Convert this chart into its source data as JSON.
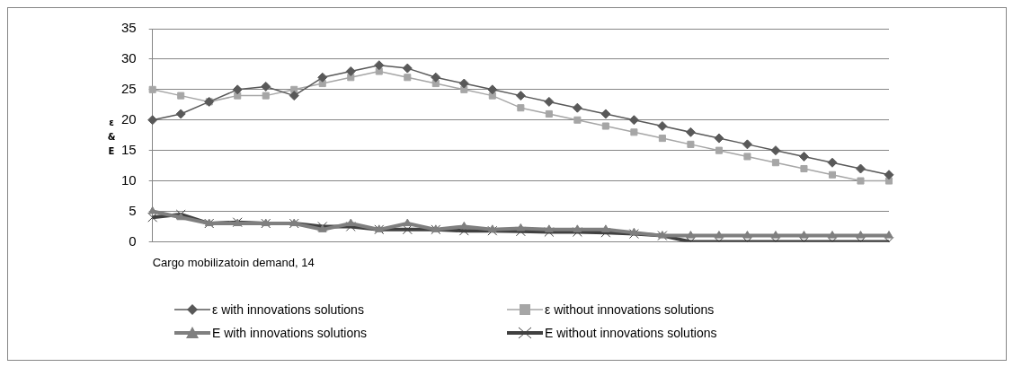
{
  "chart_data": {
    "type": "line",
    "xlabel": "Cargo mobilizatoin demand, 14",
    "ylabel": "ε & E",
    "categories": [
      null,
      null,
      null,
      null,
      null,
      null,
      null,
      null,
      null,
      null,
      null,
      null,
      null,
      null,
      null,
      null,
      null,
      null,
      null,
      null,
      null,
      null,
      null,
      null,
      null,
      null,
      null
    ],
    "series": [
      {
        "name": "ε with innovations solutions",
        "color": "#595959",
        "marker": "diamond",
        "values": [
          20,
          21,
          23,
          25,
          25.5,
          24,
          27,
          28,
          29,
          28.5,
          27,
          26,
          25,
          24,
          23,
          22,
          21,
          20,
          19,
          18,
          17,
          16,
          15,
          14,
          13,
          12,
          11
        ]
      },
      {
        "name": "ε without innovations solutions",
        "color": "#a6a6a6",
        "marker": "square",
        "values": [
          25,
          24,
          23,
          24,
          24,
          25,
          26,
          27,
          28,
          27,
          26,
          25,
          24,
          22,
          21,
          20,
          19,
          18,
          17,
          16,
          15,
          14,
          13,
          12,
          11,
          10,
          10
        ]
      },
      {
        "name": "E with innovations solutions",
        "color": "#7f7f7f",
        "marker": "triangle",
        "values": [
          5,
          4,
          3,
          3,
          3,
          3,
          2,
          3,
          2,
          3,
          2,
          2.5,
          2,
          2.2,
          2,
          2,
          2,
          1.5,
          1,
          1,
          1,
          1,
          1,
          1,
          1,
          1,
          1
        ]
      },
      {
        "name": "E without innovations solutions",
        "color": "#404040",
        "marker": "cross",
        "values": [
          4,
          4.5,
          3,
          3.2,
          3,
          3,
          2.5,
          2.5,
          2,
          2,
          2,
          1.8,
          1.8,
          1.7,
          1.6,
          1.6,
          1.5,
          1.3,
          1,
          0,
          0,
          0,
          0,
          0,
          0,
          0,
          0
        ]
      }
    ],
    "ylim": [
      0,
      35
    ],
    "yticks": [
      0,
      5,
      10,
      15,
      20,
      25,
      30,
      35
    ],
    "grid": "y",
    "legend": "bottom"
  }
}
